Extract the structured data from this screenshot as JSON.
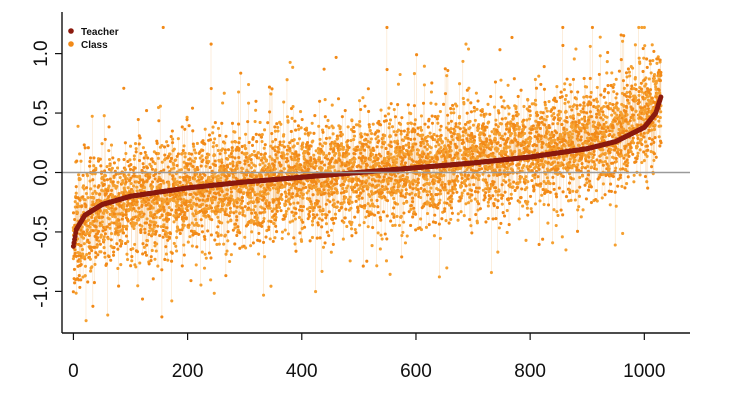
{
  "chart_data": {
    "type": "scatter",
    "title": "",
    "xlabel": "",
    "ylabel": "",
    "xlim": [
      -20,
      1080
    ],
    "ylim": [
      -1.35,
      1.35
    ],
    "x_ticks": [
      0,
      200,
      400,
      600,
      800,
      1000
    ],
    "y_ticks": [
      -1.0,
      -0.5,
      0.0,
      0.5,
      1.0
    ],
    "x_tick_labels": [
      "0",
      "200",
      "400",
      "600",
      "800",
      "1000"
    ],
    "y_tick_labels": [
      "-1.0",
      "-0.5",
      "0.0",
      "0.5",
      "1.0"
    ],
    "reference_line_y": 0,
    "legend": {
      "position": "top-left",
      "entries": [
        "Teacher",
        "Class"
      ]
    },
    "n_points": 1030,
    "series": [
      {
        "name": "Teacher",
        "color": "#8b1a0e",
        "description_points_x": [
          0,
          5,
          20,
          50,
          100,
          200,
          300,
          400,
          500,
          600,
          700,
          800,
          900,
          950,
          1000,
          1020,
          1030
        ],
        "y": [
          -0.62,
          -0.48,
          -0.36,
          -0.27,
          -0.2,
          -0.13,
          -0.08,
          -0.04,
          0.0,
          0.04,
          0.08,
          0.13,
          0.2,
          0.26,
          0.38,
          0.5,
          0.65
        ]
      },
      {
        "name": "Class",
        "color": "#f28a18",
        "x_sample": [
          0,
          20,
          50,
          100,
          200,
          300,
          400,
          500,
          600,
          700,
          800,
          900,
          950,
          1000,
          1030
        ],
        "y_mean_approx": [
          -0.55,
          -0.42,
          -0.33,
          -0.25,
          -0.16,
          -0.1,
          -0.05,
          0.0,
          0.05,
          0.1,
          0.17,
          0.27,
          0.34,
          0.45,
          0.58
        ],
        "y_spread_sd_approx": 0.22,
        "y_min_approx": -1.25,
        "y_max_approx": 1.22
      }
    ]
  }
}
